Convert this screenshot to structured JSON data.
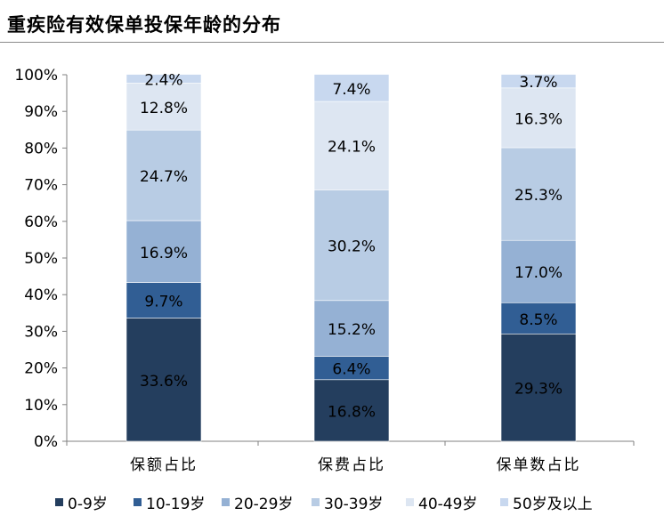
{
  "title": "重疾险有效保单投保年龄的分布",
  "chart_data": {
    "type": "bar",
    "stacked": true,
    "categories": [
      "保额占比",
      "保费占比",
      "保单数占比"
    ],
    "series": [
      {
        "name": "0-9岁",
        "color": "#243e5e",
        "values": [
          33.6,
          16.8,
          29.3
        ],
        "labels": [
          "33.6%",
          "16.8%",
          "29.3%"
        ]
      },
      {
        "name": "10-19岁",
        "color": "#315e94",
        "values": [
          9.7,
          6.4,
          8.5
        ],
        "labels": [
          "9.7%",
          "6.4%",
          "8.5%"
        ]
      },
      {
        "name": "20-29岁",
        "color": "#95b1d4",
        "values": [
          16.9,
          15.2,
          17.0
        ],
        "labels": [
          "16.9%",
          "15.2%",
          "17.0%"
        ]
      },
      {
        "name": "30-39岁",
        "color": "#b8cce4",
        "values": [
          24.7,
          30.2,
          25.3
        ],
        "labels": [
          "24.7%",
          "30.2%",
          "25.3%"
        ]
      },
      {
        "name": "40-49岁",
        "color": "#dde6f2",
        "values": [
          12.8,
          24.1,
          16.3
        ],
        "labels": [
          "12.8%",
          "24.1%",
          "16.3%"
        ]
      },
      {
        "name": "50岁及以上",
        "color": "#c8d8ef",
        "values": [
          2.4,
          7.4,
          3.7
        ],
        "labels": [
          "2.4%",
          "7.4%",
          "3.7%"
        ]
      }
    ],
    "yticks": [
      "0%",
      "10%",
      "20%",
      "30%",
      "40%",
      "50%",
      "60%",
      "70%",
      "80%",
      "90%",
      "100%"
    ],
    "ylim": [
      0,
      100
    ],
    "legend_position": "bottom",
    "grid": false
  }
}
